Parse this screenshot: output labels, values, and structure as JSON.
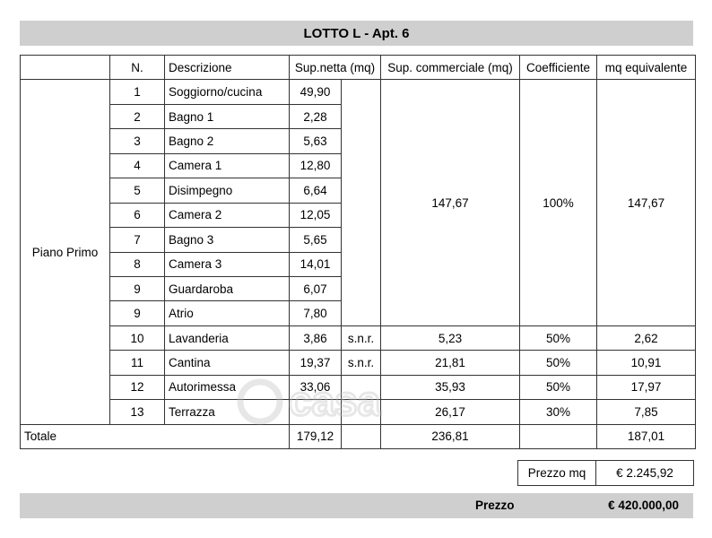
{
  "title": "LOTTO L - Apt. 6",
  "headers": [
    "N.",
    "Descrizione",
    "Sup.netta (mq)",
    "Sup. commerciale (mq)",
    "Coefficiente",
    "mq equivalente"
  ],
  "floor_label": "Piano Primo",
  "rooms": [
    {
      "n": "1",
      "name": "Soggiorno/cucina",
      "netta": "49,90"
    },
    {
      "n": "2",
      "name": "Bagno 1",
      "netta": "2,28"
    },
    {
      "n": "3",
      "name": "Bagno 2",
      "netta": "5,63"
    },
    {
      "n": "4",
      "name": "Camera 1",
      "netta": "12,80"
    },
    {
      "n": "5",
      "name": "Disimpegno",
      "netta": "6,64"
    },
    {
      "n": "6",
      "name": "Camera 2",
      "netta": "12,05"
    },
    {
      "n": "7",
      "name": "Bagno 3",
      "netta": "5,65"
    },
    {
      "n": "8",
      "name": "Camera 3",
      "netta": "14,01"
    },
    {
      "n": "9",
      "name": "Guardaroba",
      "netta": "6,07"
    },
    {
      "n": "9",
      "name": "Atrio",
      "netta": "7,80"
    }
  ],
  "group": {
    "commerciale": "147,67",
    "coefficiente": "100%",
    "equivalente": "147,67"
  },
  "extras": [
    {
      "n": "10",
      "name": "Lavanderia",
      "netta": "3,86",
      "note": "s.n.r.",
      "commerciale": "5,23",
      "coefficiente": "50%",
      "equivalente": "2,62"
    },
    {
      "n": "11",
      "name": "Cantina",
      "netta": "19,37",
      "note": "s.n.r.",
      "commerciale": "21,81",
      "coefficiente": "50%",
      "equivalente": "10,91"
    },
    {
      "n": "12",
      "name": "Autorimessa",
      "netta": "33,06",
      "note": "",
      "commerciale": "35,93",
      "coefficiente": "50%",
      "equivalente": "17,97"
    },
    {
      "n": "13",
      "name": "Terrazza",
      "netta": "",
      "note": "",
      "commerciale": "26,17",
      "coefficiente": "30%",
      "equivalente": "7,85"
    }
  ],
  "totals": {
    "label": "Totale",
    "netta": "179,12",
    "commerciale": "236,81",
    "equivalente": "187,01"
  },
  "prezzo_mq": {
    "label": "Prezzo mq",
    "value": "€ 2.245,92"
  },
  "prezzo": {
    "label": "Prezzo",
    "value": "€ 420.000,00"
  },
  "watermark": {
    "text": "casa"
  }
}
